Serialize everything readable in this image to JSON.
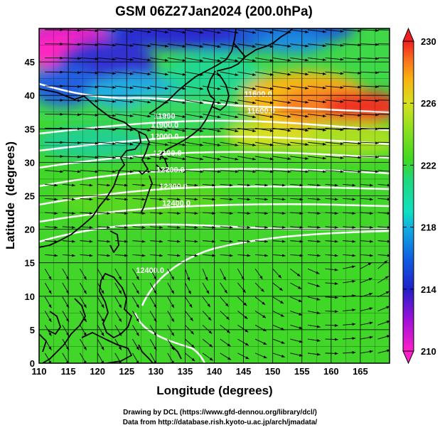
{
  "chart_data": {
    "type": "heatmap",
    "title": "GSM 06Z27Jan2024 (200.0hPa)",
    "xlabel": "Longitude (degrees)",
    "ylabel": "Latitude  (degrees)",
    "xlim": [
      110,
      170
    ],
    "ylim": [
      0,
      50
    ],
    "x_ticks": [
      110,
      115,
      120,
      125,
      130,
      135,
      140,
      145,
      150,
      155,
      160,
      165
    ],
    "y_ticks": [
      0,
      5,
      10,
      15,
      20,
      25,
      30,
      35,
      40,
      45
    ],
    "grid": true,
    "fill_variable_range": [
      210,
      230
    ],
    "colorbar": {
      "ticks": [
        210,
        214,
        218,
        222,
        226,
        230
      ],
      "colors": [
        "#ff1fc8",
        "#a010d8",
        "#2020c8",
        "#1060e0",
        "#10b0e0",
        "#10e0c0",
        "#20d880",
        "#40d820",
        "#90e020",
        "#d8e020",
        "#f8b010",
        "#f87020",
        "#f02020"
      ]
    },
    "contour_labels": [
      {
        "text": "11600.0",
        "lon": 147.5,
        "lat": 39.8
      },
      {
        "text": "11600.0",
        "lon": 148.0,
        "lat": 37.3
      },
      {
        "text": "11900",
        "lon": 131.5,
        "lat": 36.5
      },
      {
        "text": "11900.0",
        "lon": 131.5,
        "lat": 35.2
      },
      {
        "text": "12000.0",
        "lon": 131.5,
        "lat": 33.5
      },
      {
        "text": "12100.0",
        "lon": 132.0,
        "lat": 31.0
      },
      {
        "text": "12200.0",
        "lon": 132.5,
        "lat": 28.5
      },
      {
        "text": "12300.0",
        "lon": 133.0,
        "lat": 26.0
      },
      {
        "text": "12400.0",
        "lon": 133.5,
        "lat": 23.5
      },
      {
        "text": "12400.0",
        "lon": 129.0,
        "lat": 13.5
      }
    ]
  },
  "credits": {
    "line1": "Drawing by DCL (https://www.gfd-dennou.org/library/dcl/)",
    "line2": "Data from http://database.rish.kyoto-u.ac.jp/arch/jmadata/"
  }
}
